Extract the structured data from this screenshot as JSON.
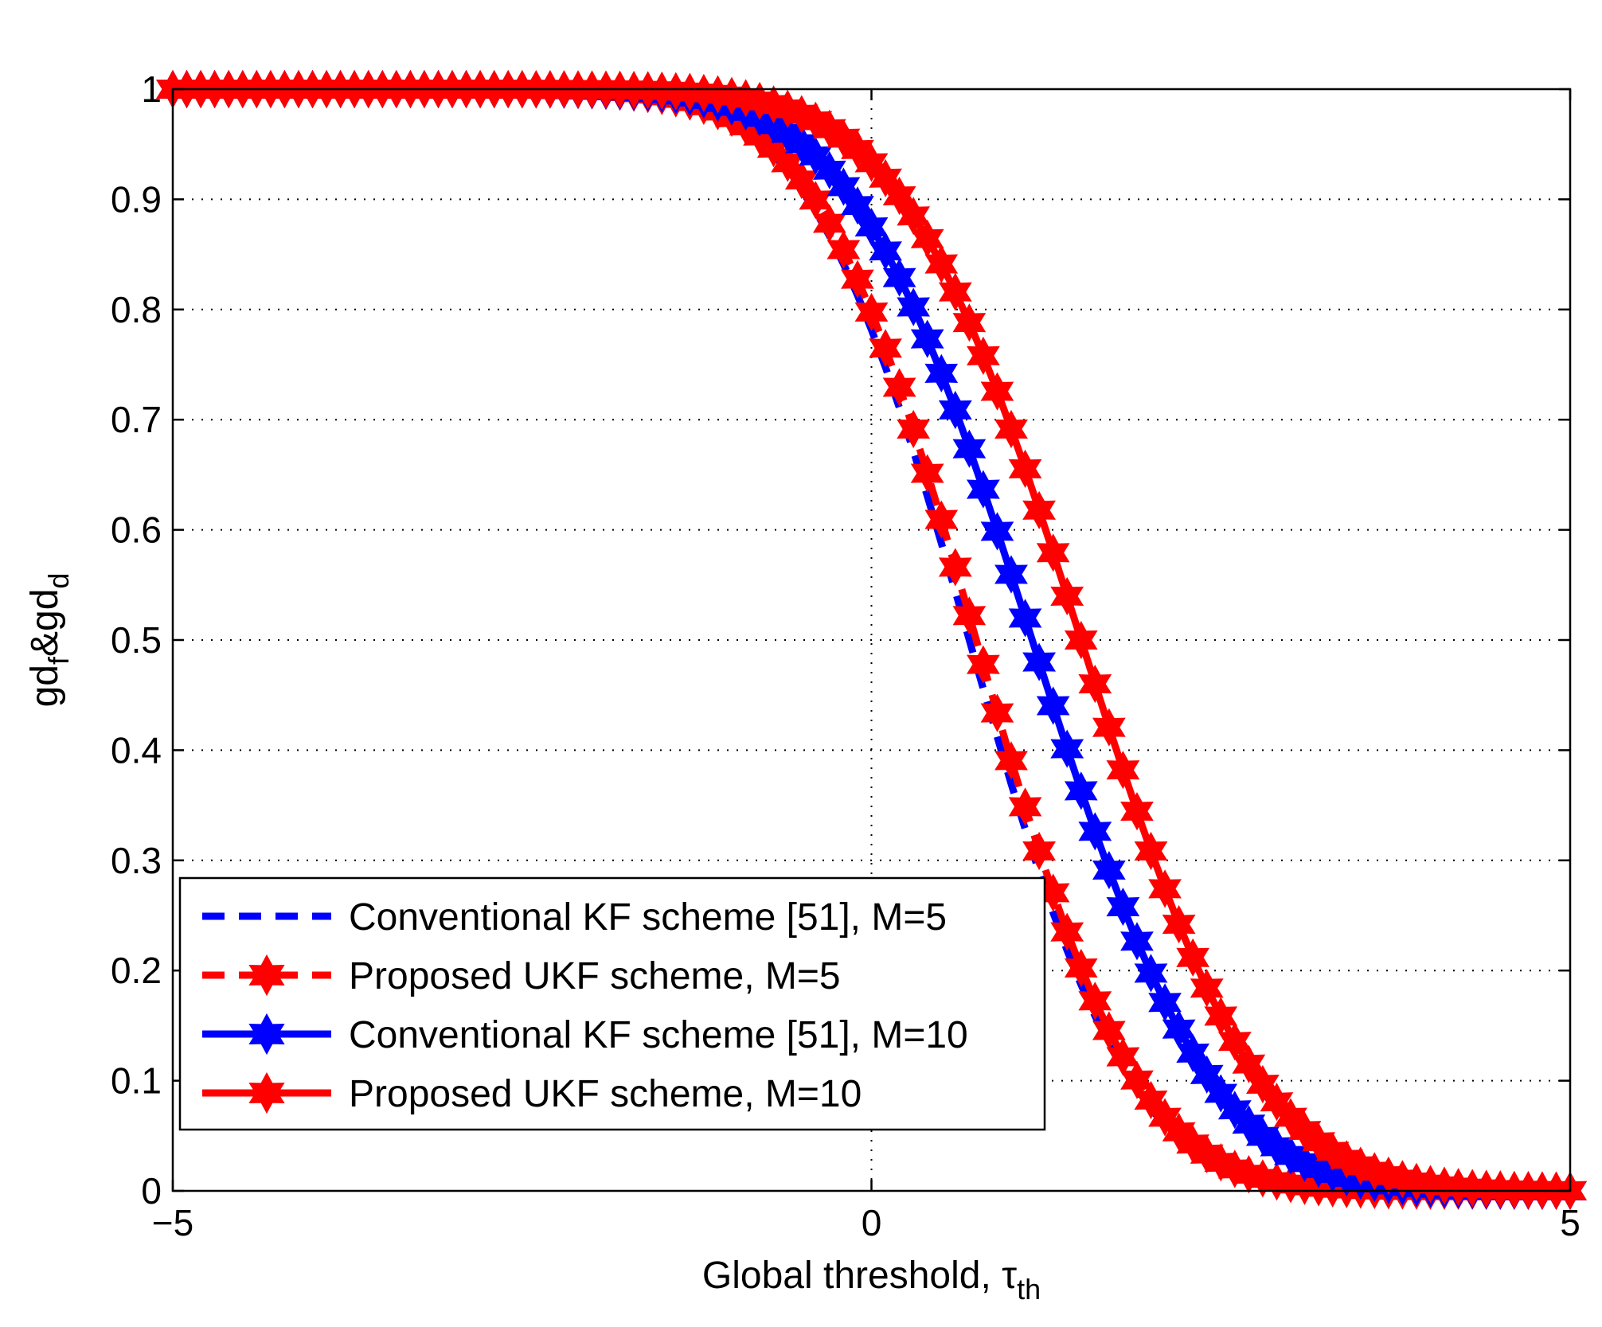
{
  "chart_data": {
    "type": "line",
    "title": "",
    "xlabel": "Global threshold, τ",
    "xlabel_sub": "th",
    "ylabel_parts": [
      "gd",
      "f",
      "&gd",
      "d"
    ],
    "xlim": [
      -5,
      5
    ],
    "ylim": [
      0,
      1
    ],
    "x_ticks": [
      -5,
      0,
      5
    ],
    "x_tick_labels": [
      "−5",
      "0",
      "5"
    ],
    "y_ticks": [
      0,
      0.1,
      0.2,
      0.3,
      0.4,
      0.5,
      0.6,
      0.7,
      0.8,
      0.9,
      1
    ],
    "y_tick_labels": [
      "0",
      "0.1",
      "0.2",
      "0.3",
      "0.4",
      "0.5",
      "0.6",
      "0.7",
      "0.8",
      "0.9",
      "1"
    ],
    "grid": true,
    "legend_position": "lower-left",
    "x_step": 0.1,
    "series": [
      {
        "name": "Conventional KF scheme [51], M=5",
        "color": "#0000ff",
        "line_style": "dashed",
        "marker": "none",
        "curve": "normal_ccdf",
        "mean": 0.7,
        "std": 0.9
      },
      {
        "name": "Proposed UKF scheme, M=5",
        "color": "#ff0000",
        "line_style": "dashed",
        "marker": "hexagram",
        "curve": "normal_ccdf",
        "mean": 0.75,
        "std": 0.9
      },
      {
        "name": "Conventional KF scheme [51], M=10",
        "color": "#0000ff",
        "line_style": "solid",
        "marker": "hexagram",
        "curve": "normal_ccdf",
        "mean": 1.15,
        "std": 1.0
      },
      {
        "name": "Proposed UKF scheme, M=10",
        "color": "#ff0000",
        "line_style": "solid",
        "marker": "hexagram",
        "curve": "normal_ccdf",
        "mean": 1.5,
        "std": 1.0
      }
    ]
  }
}
